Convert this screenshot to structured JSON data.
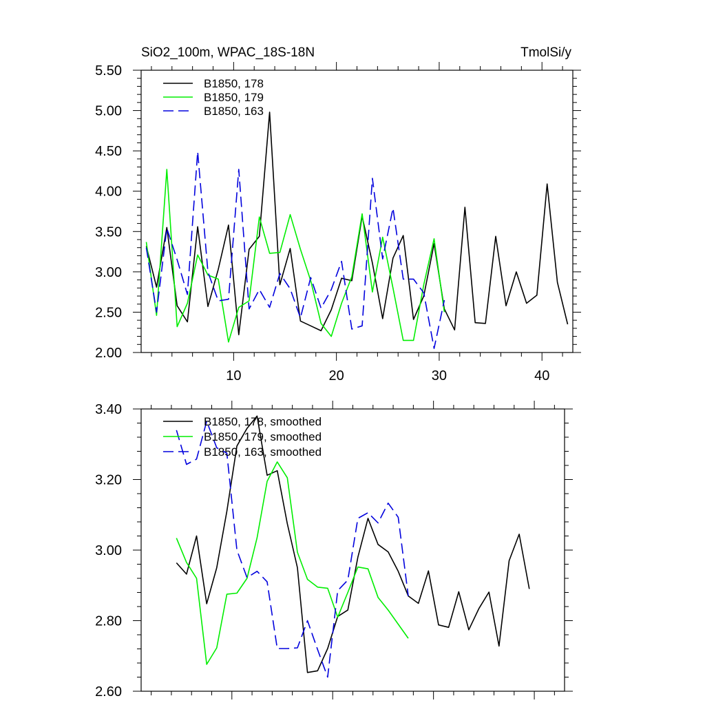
{
  "chart_data": [
    {
      "type": "line",
      "title_left": "SiO2_100m, WPAC_18S-18N",
      "title_right": "TmolSi/y",
      "xlim": [
        1,
        43
      ],
      "ylim": [
        2.0,
        5.5
      ],
      "xticks": [
        10,
        20,
        30,
        40
      ],
      "xtick_labels": [
        "10",
        "20",
        "30",
        "40"
      ],
      "yticks": [
        2.0,
        2.5,
        3.0,
        3.5,
        4.0,
        4.5,
        5.0,
        5.5
      ],
      "ytick_labels": [
        "2.00",
        "2.50",
        "3.00",
        "3.50",
        "4.00",
        "4.50",
        "5.00",
        "5.50"
      ],
      "legend_position": "top-left",
      "series": [
        {
          "name": "B1850, 178",
          "color": "#000000",
          "dash": "solid",
          "x": [
            1.5,
            2.5,
            3.5,
            4.5,
            5.5,
            6.5,
            7.5,
            8.5,
            9.5,
            10.5,
            11.5,
            12.5,
            13.5,
            14.5,
            15.5,
            16.5,
            17.5,
            18.5,
            19.5,
            20.5,
            21.5,
            22.5,
            23.5,
            24.5,
            25.5,
            26.5,
            27.5,
            28.5,
            29.5,
            30.5,
            31.5,
            32.5,
            33.5,
            34.5,
            35.5,
            36.5,
            37.5,
            38.5,
            39.5,
            40.5,
            41.5,
            42.5
          ],
          "values": [
            3.32,
            2.81,
            3.55,
            2.58,
            2.38,
            3.56,
            2.57,
            3.03,
            3.58,
            2.22,
            3.28,
            3.44,
            4.98,
            2.84,
            3.29,
            2.39,
            2.33,
            2.27,
            2.53,
            2.92,
            2.89,
            3.69,
            3.11,
            2.42,
            3.17,
            3.45,
            2.41,
            2.7,
            3.35,
            2.54,
            2.28,
            3.8,
            2.37,
            2.36,
            3.44,
            2.58,
            3.0,
            2.61,
            2.71,
            4.09,
            2.87,
            2.35
          ]
        },
        {
          "name": "B1850, 179",
          "color": "#00ee00",
          "dash": "solid",
          "x": [
            1.5,
            2.5,
            3.5,
            4.5,
            5.5,
            6.5,
            7.5,
            8.5,
            9.5,
            10.5,
            11.5,
            12.5,
            13.5,
            14.5,
            15.5,
            16.5,
            17.5,
            18.5,
            19.5,
            20.5,
            21.5,
            22.5,
            23.5,
            24.5,
            25.5,
            26.5,
            27.5,
            28.5,
            29.5,
            30.5
          ],
          "values": [
            3.37,
            2.46,
            4.27,
            2.32,
            2.61,
            3.21,
            2.96,
            2.91,
            2.13,
            2.56,
            2.64,
            3.68,
            3.23,
            3.24,
            3.71,
            3.28,
            2.89,
            2.36,
            2.2,
            2.61,
            2.94,
            3.72,
            2.75,
            3.43,
            2.8,
            2.15,
            2.15,
            2.84,
            3.41,
            2.5
          ]
        },
        {
          "name": "B1850, 163",
          "color": "#0000dd",
          "dash": "dashed",
          "x": [
            1.5,
            2.5,
            3.5,
            4.5,
            5.5,
            6.5,
            7.5,
            8.5,
            9.5,
            10.5,
            11.5,
            12.5,
            13.5,
            14.5,
            15.5,
            16.5,
            17.5,
            18.5,
            19.5,
            20.5,
            21.5,
            22.5,
            23.5,
            24.5,
            25.5,
            26.5,
            27.5,
            28.5,
            29.5,
            30.5
          ],
          "values": [
            3.3,
            2.5,
            3.54,
            3.15,
            2.72,
            4.49,
            3.0,
            2.64,
            2.66,
            4.27,
            2.54,
            2.78,
            2.56,
            2.98,
            2.79,
            2.43,
            2.93,
            2.55,
            2.78,
            3.13,
            2.29,
            2.33,
            4.16,
            3.16,
            3.79,
            2.91,
            2.91,
            2.74,
            2.05,
            2.65
          ]
        }
      ]
    },
    {
      "type": "line",
      "xlim": [
        1,
        43
      ],
      "ylim": [
        2.6,
        3.4
      ],
      "xticks": [
        10,
        20,
        30,
        40
      ],
      "yticks": [
        2.6,
        2.8,
        3.0,
        3.2,
        3.4
      ],
      "ytick_labels": [
        "2.60",
        "2.80",
        "3.00",
        "3.20",
        "3.40"
      ],
      "legend_position": "top-left",
      "series": [
        {
          "name": "B1850, 178, smoothed",
          "color": "#000000",
          "dash": "solid",
          "x": [
            4.5,
            5.5,
            6.5,
            7.5,
            8.5,
            9.5,
            10.5,
            11.5,
            12.5,
            13.5,
            14.5,
            15.5,
            16.5,
            17.5,
            18.5,
            19.5,
            20.5,
            21.5,
            22.5,
            23.5,
            24.5,
            25.5,
            26.5,
            27.5,
            28.5,
            29.5,
            30.5,
            31.5,
            32.5,
            33.5,
            34.5,
            35.5,
            36.5,
            37.5,
            38.5,
            39.5
          ],
          "values": [
            2.964,
            2.932,
            3.04,
            2.848,
            2.95,
            3.11,
            3.295,
            3.345,
            3.38,
            3.212,
            3.225,
            3.075,
            2.95,
            2.653,
            2.658,
            2.721,
            2.812,
            2.83,
            2.98,
            3.09,
            3.016,
            2.995,
            2.94,
            2.87,
            2.849,
            2.941,
            2.788,
            2.781,
            2.882,
            2.774,
            2.834,
            2.881,
            2.728,
            2.97,
            3.045,
            2.89
          ]
        },
        {
          "name": "B1850, 179, smoothed",
          "color": "#00ee00",
          "dash": "solid",
          "x": [
            4.5,
            5.5,
            6.5,
            7.5,
            8.5,
            9.5,
            10.5,
            11.5,
            12.5,
            13.5,
            14.5,
            15.5,
            16.5,
            17.5,
            18.5,
            19.5,
            20.5,
            21.5,
            22.5,
            23.5,
            24.5,
            25.5,
            26.5,
            27.5
          ],
          "values": [
            3.034,
            2.965,
            2.92,
            2.676,
            2.723,
            2.875,
            2.878,
            2.92,
            3.035,
            3.195,
            3.25,
            3.205,
            2.994,
            2.917,
            2.895,
            2.892,
            2.81,
            2.88,
            2.952,
            2.947,
            2.866,
            2.83,
            2.79,
            2.75
          ]
        },
        {
          "name": "B1850, 163, smoothed",
          "color": "#0000dd",
          "dash": "dashed",
          "x": [
            4.5,
            5.5,
            6.5,
            7.5,
            8.5,
            9.5,
            10.5,
            11.5,
            12.5,
            13.5,
            14.5,
            15.5,
            16.5,
            17.5,
            18.5,
            19.5,
            20.5,
            21.5,
            22.5,
            23.5,
            24.5,
            25.5,
            26.5,
            27.5
          ],
          "values": [
            3.34,
            3.243,
            3.258,
            3.365,
            3.29,
            3.275,
            3.0,
            2.922,
            2.94,
            2.91,
            2.721,
            2.721,
            2.723,
            2.8,
            2.718,
            2.64,
            2.885,
            2.915,
            3.09,
            3.106,
            3.077,
            3.133,
            3.093,
            2.87
          ]
        }
      ]
    }
  ]
}
